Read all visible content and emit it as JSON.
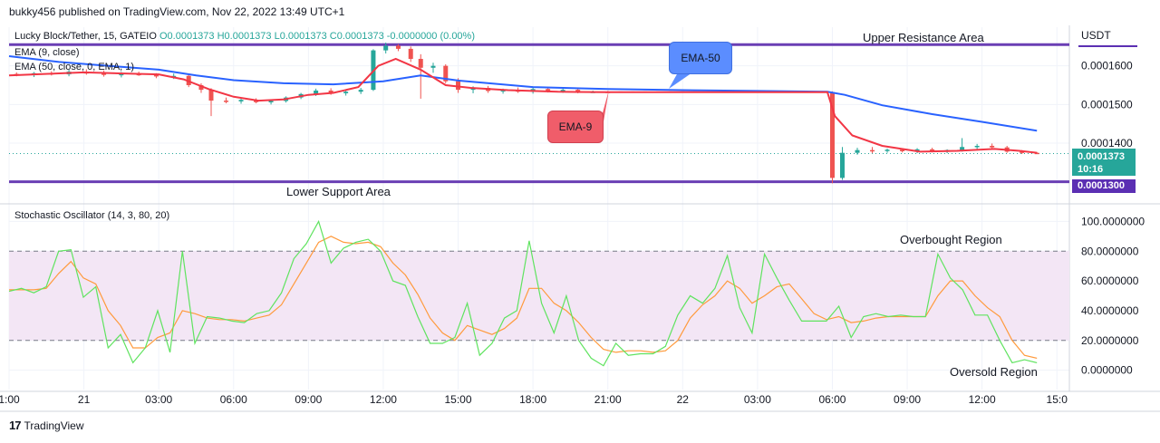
{
  "header": {
    "published_by": "bukky456 published on TradingView.com, Nov 22, 2022 13:49 UTC+1"
  },
  "legend": {
    "symbol_line": "Lucky Block/Tether, 15, GATEIO",
    "ohlc": "O0.0001373 H0.0001373 L0.0001373 C0.0001373 -0.0000000 (0.00%)",
    "ema9": "EMA (9, close)",
    "ema50": "EMA (50, close, 0, EMA, 1)",
    "stoch": "Stochastic Oscillator (14, 3, 80, 20)"
  },
  "annotations": {
    "upper_resistance": "Upper Resistance Area",
    "lower_support": "Lower Support Area",
    "overbought": "Overbought Region",
    "oversold": "Oversold Region",
    "ema50_callout": "EMA-50",
    "ema9_callout": "EMA-9"
  },
  "price_axis": {
    "currency": "USDT",
    "last_price": "0.0001373",
    "countdown": "10:16",
    "support_level": "0.0001300"
  },
  "footer": {
    "brand": "TradingView"
  },
  "colors": {
    "ema9": "#f23645",
    "ema50": "#2962ff",
    "stoch_k": "#5fe35f",
    "stoch_d": "#ff9a3c",
    "level_line": "#6a3fb4",
    "up": "#26a69a",
    "down": "#ef5350",
    "band": "#f3e6f5",
    "price_tag": "#26a69a",
    "support_tag": "#5b2fb3",
    "callout_ema50": "#5b8dff",
    "callout_ema9": "#f05d6a"
  },
  "chart_data": [
    {
      "type": "line",
      "title": "Lucky Block/Tether, 15, GATEIO",
      "xlabel": "",
      "ylabel": "USDT",
      "ylim": [
        0.000125,
        0.00017
      ],
      "y_ticks": [
        "0.0001600",
        "0.0001500",
        "0.0001400"
      ],
      "x_ticks": [
        {
          "t": 0,
          "label": "1:00"
        },
        {
          "t": 3,
          "label": "21"
        },
        {
          "t": 6,
          "label": "03:00"
        },
        {
          "t": 9,
          "label": "06:00"
        },
        {
          "t": 12,
          "label": "09:00"
        },
        {
          "t": 15,
          "label": "12:00"
        },
        {
          "t": 18,
          "label": "15:00"
        },
        {
          "t": 21,
          "label": "18:00"
        },
        {
          "t": 24,
          "label": "21:00"
        },
        {
          "t": 27,
          "label": "22"
        },
        {
          "t": 30,
          "label": "03:00"
        },
        {
          "t": 33,
          "label": "06:00"
        },
        {
          "t": 36,
          "label": "09:00"
        },
        {
          "t": 39,
          "label": "12:00"
        },
        {
          "t": 42,
          "label": "15:0"
        }
      ],
      "levels": {
        "upper_resistance": 0.0001655,
        "lower_support": 0.00013
      },
      "series": [
        {
          "name": "EMA (9, close)",
          "points": [
            [
              0,
              0.0001575
            ],
            [
              3,
              0.0001583
            ],
            [
              6,
              0.0001578
            ],
            [
              7,
              0.0001565
            ],
            [
              8,
              0.000154
            ],
            [
              9,
              0.000152
            ],
            [
              10,
              0.000151
            ],
            [
              11,
              0.0001513
            ],
            [
              12,
              0.0001525
            ],
            [
              13,
              0.000153
            ],
            [
              14,
              0.0001545
            ],
            [
              14.8,
              0.00016
            ],
            [
              15.5,
              0.0001618
            ],
            [
              16.5,
              0.000159
            ],
            [
              17.5,
              0.000155
            ],
            [
              18.5,
              0.0001543
            ],
            [
              20,
              0.0001537
            ],
            [
              22,
              0.0001533
            ],
            [
              24,
              0.0001532
            ],
            [
              27,
              0.0001532
            ],
            [
              30,
              0.0001532
            ],
            [
              32.8,
              0.0001532
            ],
            [
              33.1,
              0.000147
            ],
            [
              33.8,
              0.000142
            ],
            [
              35,
              0.0001393
            ],
            [
              36.5,
              0.0001378
            ],
            [
              38,
              0.000138
            ],
            [
              39.5,
              0.0001385
            ],
            [
              40.5,
              0.000138
            ],
            [
              41.2,
              0.0001375
            ]
          ]
        },
        {
          "name": "EMA (50, close, 0, EMA, 1)",
          "points": [
            [
              0,
              0.0001625
            ],
            [
              2,
              0.000161
            ],
            [
              4,
              0.00016
            ],
            [
              6,
              0.000159
            ],
            [
              7.5,
              0.0001575
            ],
            [
              9,
              0.0001563
            ],
            [
              11,
              0.0001555
            ],
            [
              13,
              0.0001552
            ],
            [
              15,
              0.000156
            ],
            [
              16.5,
              0.0001575
            ],
            [
              18,
              0.0001562
            ],
            [
              21,
              0.0001545
            ],
            [
              24,
              0.000154
            ],
            [
              27,
              0.0001537
            ],
            [
              30,
              0.0001535
            ],
            [
              32.8,
              0.0001533
            ],
            [
              33.5,
              0.0001525
            ],
            [
              35,
              0.0001498
            ],
            [
              37,
              0.0001475
            ],
            [
              39,
              0.0001455
            ],
            [
              41.2,
              0.0001432
            ]
          ]
        }
      ],
      "candles": [
        [
          0.3,
          0.0001579,
          0.0001583,
          0.0001573,
          0.0001576
        ],
        [
          1.0,
          0.0001576,
          0.0001584,
          0.0001571,
          0.0001581
        ],
        [
          1.7,
          0.0001581,
          0.0001586,
          0.0001575,
          0.0001578
        ],
        [
          2.4,
          0.0001578,
          0.000159,
          0.0001573,
          0.0001585
        ],
        [
          3.1,
          0.0001585,
          0.0001591,
          0.0001577,
          0.000158
        ],
        [
          3.8,
          0.000158,
          0.0001588,
          0.0001572,
          0.0001577
        ],
        [
          4.5,
          0.0001577,
          0.0001584,
          0.000157,
          0.0001579
        ],
        [
          5.2,
          0.0001579,
          0.0001585,
          0.0001574,
          0.0001576
        ],
        [
          5.9,
          0.0001576,
          0.0001581,
          0.0001568,
          0.0001573
        ],
        [
          6.6,
          0.0001573,
          0.000158,
          0.0001566,
          0.0001574
        ],
        [
          7.2,
          0.0001574,
          0.0001578,
          0.0001545,
          0.000155
        ],
        [
          7.7,
          0.000155,
          0.0001555,
          0.000153,
          0.0001538
        ],
        [
          8.1,
          0.0001538,
          0.0001542,
          0.000147,
          0.000151
        ],
        [
          8.7,
          0.000151,
          0.0001518,
          0.0001503,
          0.0001508
        ],
        [
          9.3,
          0.0001508,
          0.0001515,
          0.0001502,
          0.0001512
        ],
        [
          9.9,
          0.0001512,
          0.0001516,
          0.0001503,
          0.0001506
        ],
        [
          10.5,
          0.0001506,
          0.0001512,
          0.00015,
          0.0001509
        ],
        [
          11.1,
          0.0001509,
          0.0001521,
          0.0001505,
          0.0001518
        ],
        [
          11.7,
          0.0001518,
          0.000153,
          0.0001514,
          0.0001527
        ],
        [
          12.3,
          0.0001527,
          0.0001541,
          0.0001522,
          0.0001536
        ],
        [
          12.9,
          0.0001536,
          0.0001542,
          0.0001525,
          0.0001529
        ],
        [
          13.5,
          0.0001529,
          0.0001537,
          0.0001523,
          0.0001533
        ],
        [
          14.1,
          0.0001533,
          0.0001543,
          0.0001527,
          0.0001538
        ],
        [
          14.6,
          0.0001538,
          0.0001643,
          0.0001535,
          0.000164
        ],
        [
          15.1,
          0.000164,
          0.000166,
          0.0001632,
          0.0001652
        ],
        [
          15.6,
          0.0001652,
          0.0001656,
          0.0001638,
          0.0001644
        ],
        [
          16.1,
          0.0001644,
          0.000165,
          0.000161,
          0.0001618
        ],
        [
          16.5,
          0.0001618,
          0.000163,
          0.0001515,
          0.0001595
        ],
        [
          17.0,
          0.0001595,
          0.0001608,
          0.0001582,
          0.00016
        ],
        [
          17.5,
          0.00016,
          0.0001604,
          0.0001555,
          0.000156
        ],
        [
          18.0,
          0.000156,
          0.0001568,
          0.000153,
          0.0001538
        ],
        [
          18.6,
          0.0001538,
          0.0001547,
          0.0001529,
          0.0001543
        ],
        [
          19.2,
          0.0001543,
          0.0001548,
          0.000153,
          0.0001535
        ],
        [
          19.8,
          0.0001535,
          0.0001541,
          0.0001528,
          0.0001537
        ],
        [
          20.4,
          0.0001537,
          0.0001544,
          0.000153,
          0.0001533
        ],
        [
          21.0,
          0.0001533,
          0.0001543,
          0.0001528,
          0.000154
        ],
        [
          21.6,
          0.000154,
          0.0001545,
          0.0001531,
          0.0001536
        ],
        [
          22.2,
          0.0001536,
          0.0001541,
          0.000153,
          0.0001538
        ],
        [
          22.8,
          0.0001538,
          0.0001543,
          0.0001529,
          0.0001532
        ],
        [
          23.4,
          0.0001532,
          0.0001536,
          0.000153,
          0.0001533
        ],
        [
          24.0,
          0.0001533,
          0.0001535,
          0.0001531,
          0.0001532
        ],
        [
          33.0,
          0.0001532,
          0.0001534,
          0.0001296,
          0.000131
        ],
        [
          33.4,
          0.000131,
          0.000139,
          0.0001305,
          0.0001375
        ],
        [
          34.0,
          0.0001375,
          0.0001388,
          0.000137,
          0.0001382
        ],
        [
          34.6,
          0.0001382,
          0.000139,
          0.0001374,
          0.000138
        ],
        [
          35.2,
          0.000138,
          0.0001386,
          0.0001375,
          0.0001383
        ],
        [
          35.8,
          0.0001383,
          0.0001387,
          0.0001376,
          0.0001379
        ],
        [
          36.4,
          0.0001379,
          0.0001387,
          0.0001374,
          0.0001384
        ],
        [
          37.0,
          0.0001384,
          0.0001388,
          0.0001376,
          0.000138
        ],
        [
          37.6,
          0.000138,
          0.0001384,
          0.0001374,
          0.0001382
        ],
        [
          38.2,
          0.0001382,
          0.0001413,
          0.0001378,
          0.000139
        ],
        [
          38.8,
          0.000139,
          0.0001398,
          0.0001384,
          0.0001393
        ],
        [
          39.4,
          0.0001393,
          0.0001399,
          0.0001385,
          0.0001389
        ],
        [
          40.0,
          0.0001389,
          0.0001393,
          0.0001375,
          0.0001378
        ],
        [
          40.6,
          0.0001378,
          0.0001382,
          0.0001372,
          0.0001375
        ],
        [
          41.2,
          0.0001375,
          0.0001377,
          0.0001372,
          0.0001373
        ]
      ]
    },
    {
      "type": "line",
      "title": "Stochastic Oscillator (14, 3, 80, 20)",
      "ylim": [
        -10,
        110
      ],
      "y_ticks": [
        "100.0000000",
        "80.0000000",
        "60.0000000",
        "40.0000000",
        "20.0000000",
        "0.0000000"
      ],
      "levels": {
        "overbought": 80,
        "oversold": 20
      },
      "series": [
        {
          "name": "%K",
          "values": [
            53,
            55,
            52,
            56,
            80,
            81,
            49,
            56,
            15,
            24,
            5,
            15,
            40,
            12,
            80,
            18,
            36,
            35,
            33,
            32,
            38,
            40,
            52,
            75,
            85,
            100,
            72,
            82,
            86,
            88,
            80,
            60,
            57,
            36,
            18,
            18,
            22,
            45,
            10,
            18,
            35,
            40,
            87,
            45,
            25,
            50,
            20,
            8,
            3,
            18,
            10,
            11,
            11,
            16,
            37,
            50,
            45,
            55,
            77,
            42,
            25,
            78,
            62,
            47,
            33,
            33,
            33,
            43,
            22,
            36,
            38,
            36,
            37,
            36,
            36,
            78,
            62,
            54,
            37,
            37,
            20,
            5,
            7,
            5
          ]
        },
        {
          "name": "%D",
          "values": [
            54,
            54,
            54,
            55,
            65,
            73,
            62,
            58,
            40,
            30,
            15,
            15,
            22,
            25,
            40,
            38,
            35,
            34,
            34,
            33,
            35,
            37,
            44,
            58,
            72,
            86,
            90,
            86,
            85,
            86,
            83,
            72,
            64,
            51,
            35,
            25,
            20,
            30,
            27,
            24,
            28,
            35,
            55,
            55,
            45,
            40,
            32,
            22,
            14,
            12,
            13,
            13,
            12,
            13,
            20,
            35,
            44,
            50,
            60,
            55,
            45,
            50,
            56,
            58,
            48,
            38,
            34,
            36,
            32,
            33,
            35,
            36,
            36,
            36,
            36,
            50,
            60,
            60,
            50,
            42,
            36,
            20,
            10,
            8
          ]
        }
      ]
    }
  ]
}
